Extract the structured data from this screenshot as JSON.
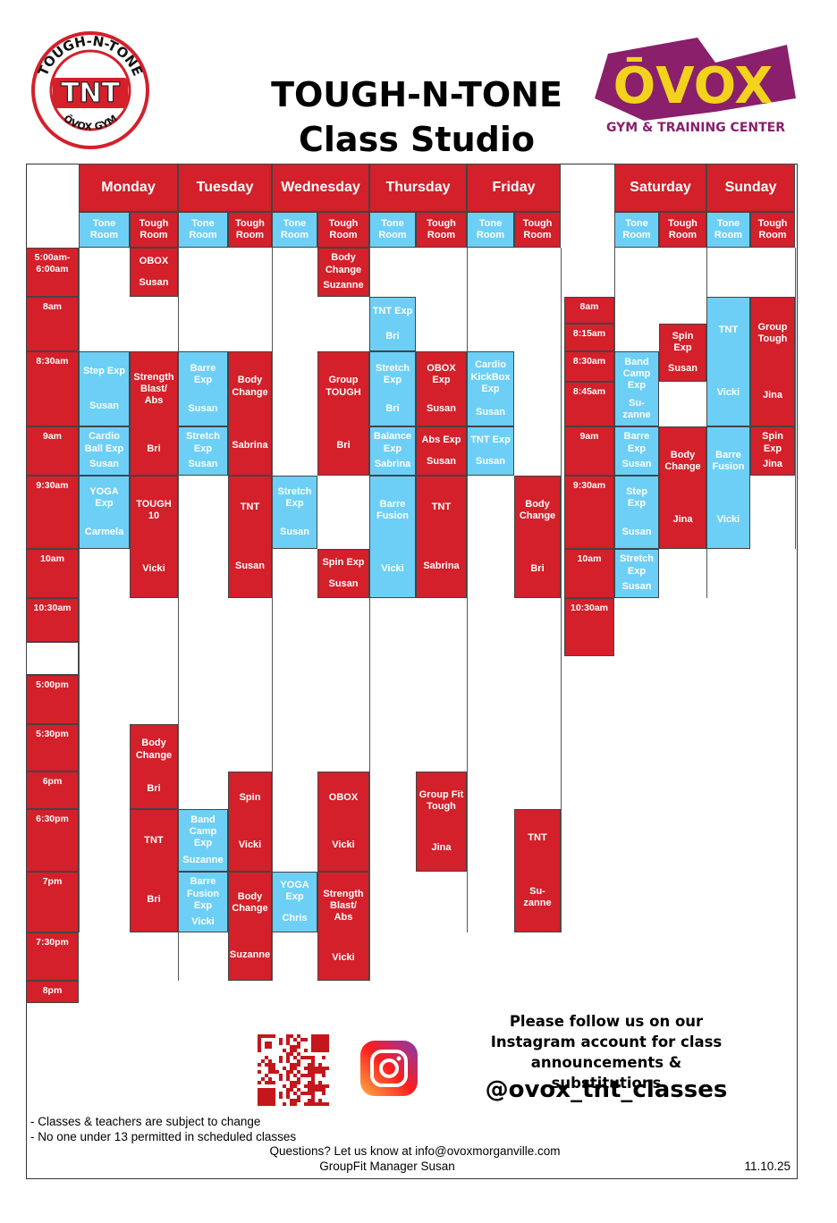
{
  "header": {
    "logo_left": {
      "arc_text": "TOUGH-N-TONE",
      "emblem": "TNT",
      "bottom_text": "ŌVOX GYM"
    },
    "title": [
      "TOUGH-N-TONE",
      "Class Studio"
    ],
    "logo_right": {
      "brand": "ŌVOX",
      "tagline": "GYM & TRAINING CENTER"
    }
  },
  "schedule": {
    "days": [
      "Monday",
      "Tuesday",
      "Wednesday",
      "Thursday",
      "Friday",
      "Saturday",
      "Sunday"
    ],
    "rooms": [
      "Tone Room",
      "Tough Room"
    ],
    "weekday_times": [
      "5:00am-6:00am",
      "8am",
      "8:30am",
      "9am",
      "9:30am",
      "10am",
      "10:30am",
      "5:00pm",
      "5:30pm",
      "6pm",
      "6:30pm",
      "7pm",
      "7:30pm",
      "8pm"
    ],
    "weekend_times": [
      "8am",
      "8:15am",
      "8:30am",
      "8:45am",
      "9am",
      "9:30am",
      "10am",
      "10:30am"
    ],
    "classes": [
      {
        "name": "OBOX",
        "instructor": "Susan"
      },
      {
        "name": "Step Exp",
        "instructor": "Susan"
      },
      {
        "name": "Strength Blast/ Abs",
        "instructor": "Bri"
      },
      {
        "name": "Cardio Ball Exp",
        "instructor": "Susan"
      },
      {
        "name": "YOGA Exp",
        "instructor": "Carmela"
      },
      {
        "name": "TOUGH 10",
        "instructor": "Vicki"
      },
      {
        "name": "Body Change",
        "instructor": "Bri"
      },
      {
        "name": "TNT",
        "instructor": "Bri"
      },
      {
        "name": "Barre Exp",
        "instructor": "Susan"
      },
      {
        "name": "Body Change",
        "instructor": "Sabrina"
      },
      {
        "name": "Stretch Exp",
        "instructor": "Susan"
      },
      {
        "name": "TNT",
        "instructor": "Susan"
      },
      {
        "name": "Spin",
        "instructor": "Vicki"
      },
      {
        "name": "Band Camp Exp",
        "instructor": "Suzanne"
      },
      {
        "name": "Barre Fusion Exp",
        "instructor": "Vicki"
      },
      {
        "name": "Body Change",
        "instructor": "Suzanne"
      },
      {
        "name": "Body Change",
        "instructor": "Suzanne"
      },
      {
        "name": "Group TOUGH",
        "instructor": "Bri"
      },
      {
        "name": "Stretch Exp",
        "instructor": "Susan"
      },
      {
        "name": "Spin Exp",
        "instructor": "Susan"
      },
      {
        "name": "OBOX",
        "instructor": "Vicki"
      },
      {
        "name": "YOGA Exp",
        "instructor": "Chris"
      },
      {
        "name": "Strength Blast/ Abs",
        "instructor": "Vicki"
      },
      {
        "name": "TNT Exp",
        "instructor": "Bri"
      },
      {
        "name": "Stretch Exp",
        "instructor": "Bri"
      },
      {
        "name": "OBOX Exp",
        "instructor": "Susan"
      },
      {
        "name": "Balance Exp",
        "instructor": "Sabrina"
      },
      {
        "name": "Abs Exp",
        "instructor": "Susan"
      },
      {
        "name": "Barre Fusion",
        "instructor": "Vicki"
      },
      {
        "name": "TNT",
        "instructor": "Sabrina"
      },
      {
        "name": "Group Fit Tough",
        "instructor": "Jina"
      },
      {
        "name": "Cardio KickBox Exp",
        "instructor": "Susan"
      },
      {
        "name": "TNT Exp",
        "instructor": "Susan"
      },
      {
        "name": "Body Change",
        "instructor": "Bri"
      },
      {
        "name": "TNT",
        "instructor": "Su-zanne"
      },
      {
        "name": "Band Camp Exp",
        "instructor": "Su-zanne"
      },
      {
        "name": "Spin Exp",
        "instructor": "Susan"
      },
      {
        "name": "Barre Exp",
        "instructor": "Susan"
      },
      {
        "name": "Body Change",
        "instructor": "Jina"
      },
      {
        "name": "Step Exp",
        "instructor": "Susan"
      },
      {
        "name": "Stretch Exp",
        "instructor": "Susan"
      },
      {
        "name": "TNT",
        "instructor": "Vicki"
      },
      {
        "name": "Group Tough",
        "instructor": "Jina"
      },
      {
        "name": "Spin Exp",
        "instructor": "Jina"
      },
      {
        "name": "Barre Fusion",
        "instructor": "Vicki"
      }
    ]
  },
  "footer": {
    "follow_text": "Please follow us on our Instagram account for class announcements & substitutions",
    "handle": "@ovox_tnt_classes",
    "notes": [
      "- Classes & teachers are subject to change",
      "- No one under 13 permitted in scheduled classes"
    ],
    "questions": "Questions? Let us know at info@ovoxmorganville.com",
    "manager": "GroupFit Manager Susan",
    "date": "11.10.25"
  }
}
